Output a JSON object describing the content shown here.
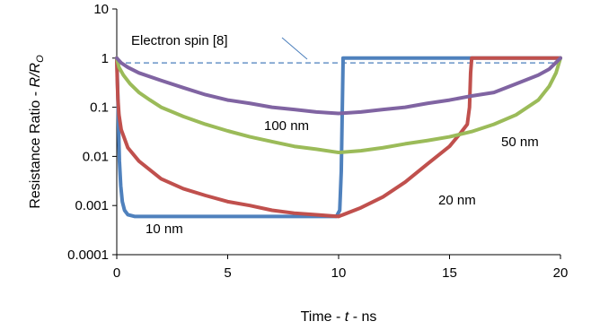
{
  "chart_data": {
    "type": "line",
    "title": "",
    "xlabel": "Time - t - ns",
    "ylabel": "Resistance Ratio - R/RO",
    "x_ticks": [
      "0",
      "5",
      "10",
      "15",
      "20"
    ],
    "y_ticks": [
      "10",
      "1",
      "0.1",
      "0.01",
      "0.001",
      "0.0001"
    ],
    "xlim": [
      0,
      20
    ],
    "ylim": [
      0.0001,
      10
    ],
    "y_scale": "log",
    "grid": false,
    "legend": "none",
    "annotation": "Electron spin [8]",
    "reference_line": {
      "y": 0.8,
      "color": "#4a7ebb",
      "style": "dashed"
    },
    "series": [
      {
        "name": "10 nm",
        "color": "#4f81bd",
        "points": [
          [
            0,
            1
          ],
          [
            0.02,
            0.5
          ],
          [
            0.05,
            0.15
          ],
          [
            0.08,
            0.04
          ],
          [
            0.12,
            0.008
          ],
          [
            0.18,
            0.0025
          ],
          [
            0.25,
            0.0012
          ],
          [
            0.35,
            0.0008
          ],
          [
            0.5,
            0.00065
          ],
          [
            0.8,
            0.0006
          ],
          [
            1.5,
            0.0006
          ],
          [
            5,
            0.0006
          ],
          [
            9.9,
            0.0006
          ],
          [
            10.05,
            0.0008
          ],
          [
            10.12,
            0.005
          ],
          [
            10.2,
            0.8
          ],
          [
            10.2,
            1
          ],
          [
            20,
            1
          ]
        ]
      },
      {
        "name": "20 nm",
        "color": "#c0504d",
        "points": [
          [
            0,
            1
          ],
          [
            0.02,
            0.4
          ],
          [
            0.05,
            0.15
          ],
          [
            0.1,
            0.07
          ],
          [
            0.2,
            0.035
          ],
          [
            0.5,
            0.015
          ],
          [
            1,
            0.008
          ],
          [
            2,
            0.0035
          ],
          [
            3,
            0.0022
          ],
          [
            4,
            0.0016
          ],
          [
            5,
            0.0012
          ],
          [
            6,
            0.001
          ],
          [
            7,
            0.0008
          ],
          [
            8,
            0.0007
          ],
          [
            9,
            0.00065
          ],
          [
            10,
            0.0006
          ],
          [
            11,
            0.0009
          ],
          [
            12,
            0.0015
          ],
          [
            13,
            0.003
          ],
          [
            14,
            0.007
          ],
          [
            15,
            0.016
          ],
          [
            15.5,
            0.03
          ],
          [
            15.8,
            0.045
          ],
          [
            15.9,
            0.1
          ],
          [
            15.95,
            0.5
          ],
          [
            16,
            1
          ],
          [
            20,
            1
          ]
        ]
      },
      {
        "name": "50 nm",
        "color": "#9bbb59",
        "points": [
          [
            0,
            1
          ],
          [
            0.1,
            0.65
          ],
          [
            0.3,
            0.45
          ],
          [
            0.6,
            0.3
          ],
          [
            1,
            0.2
          ],
          [
            1.5,
            0.14
          ],
          [
            2,
            0.1
          ],
          [
            3,
            0.065
          ],
          [
            4,
            0.045
          ],
          [
            5,
            0.033
          ],
          [
            6,
            0.025
          ],
          [
            7,
            0.02
          ],
          [
            8,
            0.016
          ],
          [
            9,
            0.014
          ],
          [
            10,
            0.012
          ],
          [
            11,
            0.013
          ],
          [
            12,
            0.015
          ],
          [
            13,
            0.018
          ],
          [
            14,
            0.021
          ],
          [
            15,
            0.025
          ],
          [
            16,
            0.032
          ],
          [
            17,
            0.045
          ],
          [
            18,
            0.07
          ],
          [
            19,
            0.14
          ],
          [
            19.5,
            0.27
          ],
          [
            19.8,
            0.5
          ],
          [
            20,
            1
          ]
        ]
      },
      {
        "name": "100 nm",
        "color": "#8064a2",
        "points": [
          [
            0,
            1
          ],
          [
            0.2,
            0.8
          ],
          [
            0.5,
            0.65
          ],
          [
            1,
            0.5
          ],
          [
            2,
            0.35
          ],
          [
            3,
            0.25
          ],
          [
            4,
            0.18
          ],
          [
            5,
            0.14
          ],
          [
            6,
            0.12
          ],
          [
            7,
            0.1
          ],
          [
            8,
            0.09
          ],
          [
            9,
            0.08
          ],
          [
            10,
            0.075
          ],
          [
            11,
            0.08
          ],
          [
            12,
            0.09
          ],
          [
            13,
            0.1
          ],
          [
            14,
            0.12
          ],
          [
            15,
            0.14
          ],
          [
            16,
            0.17
          ],
          [
            17,
            0.2
          ],
          [
            18,
            0.3
          ],
          [
            19,
            0.45
          ],
          [
            19.5,
            0.6
          ],
          [
            20,
            1
          ]
        ]
      }
    ]
  }
}
